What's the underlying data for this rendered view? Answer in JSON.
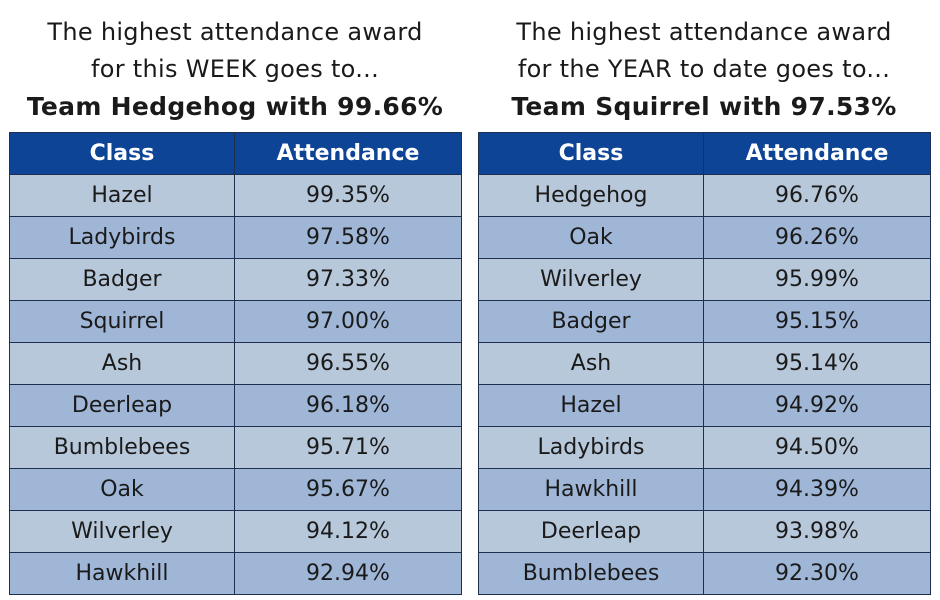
{
  "panels": [
    {
      "heading_line1": "The highest attendance award",
      "heading_line2": "for this WEEK goes to...",
      "winner": "Team Hedgehog with 99.66%",
      "columns": [
        "Class",
        "Attendance"
      ],
      "rows": [
        [
          "Hazel",
          "99.35%"
        ],
        [
          "Ladybirds",
          "97.58%"
        ],
        [
          "Badger",
          "97.33%"
        ],
        [
          "Squirrel",
          "97.00%"
        ],
        [
          "Ash",
          "96.55%"
        ],
        [
          "Deerleap",
          "96.18%"
        ],
        [
          "Bumblebees",
          "95.71%"
        ],
        [
          "Oak",
          "95.67%"
        ],
        [
          "Wilverley",
          "94.12%"
        ],
        [
          "Hawkhill",
          "92.94%"
        ]
      ]
    },
    {
      "heading_line1": "The highest attendance award",
      "heading_line2": "for the YEAR to date goes to...",
      "winner": "Team Squirrel with 97.53%",
      "columns": [
        "Class",
        "Attendance"
      ],
      "rows": [
        [
          "Hedgehog",
          "96.76%"
        ],
        [
          "Oak",
          "96.26%"
        ],
        [
          "Wilverley",
          "95.99%"
        ],
        [
          "Badger",
          "95.15%"
        ],
        [
          "Ash",
          "95.14%"
        ],
        [
          "Hazel",
          "94.92%"
        ],
        [
          "Ladybirds",
          "94.50%"
        ],
        [
          "Hawkhill",
          "94.39%"
        ],
        [
          "Deerleap",
          "93.98%"
        ],
        [
          "Bumblebees",
          "92.30%"
        ]
      ]
    }
  ],
  "colors": {
    "header_bg": "#0d4495",
    "header_text": "#ffffff",
    "row_light": "#b8c8db",
    "row_dark": "#9fb6d7",
    "border": "#1f2f4f"
  }
}
